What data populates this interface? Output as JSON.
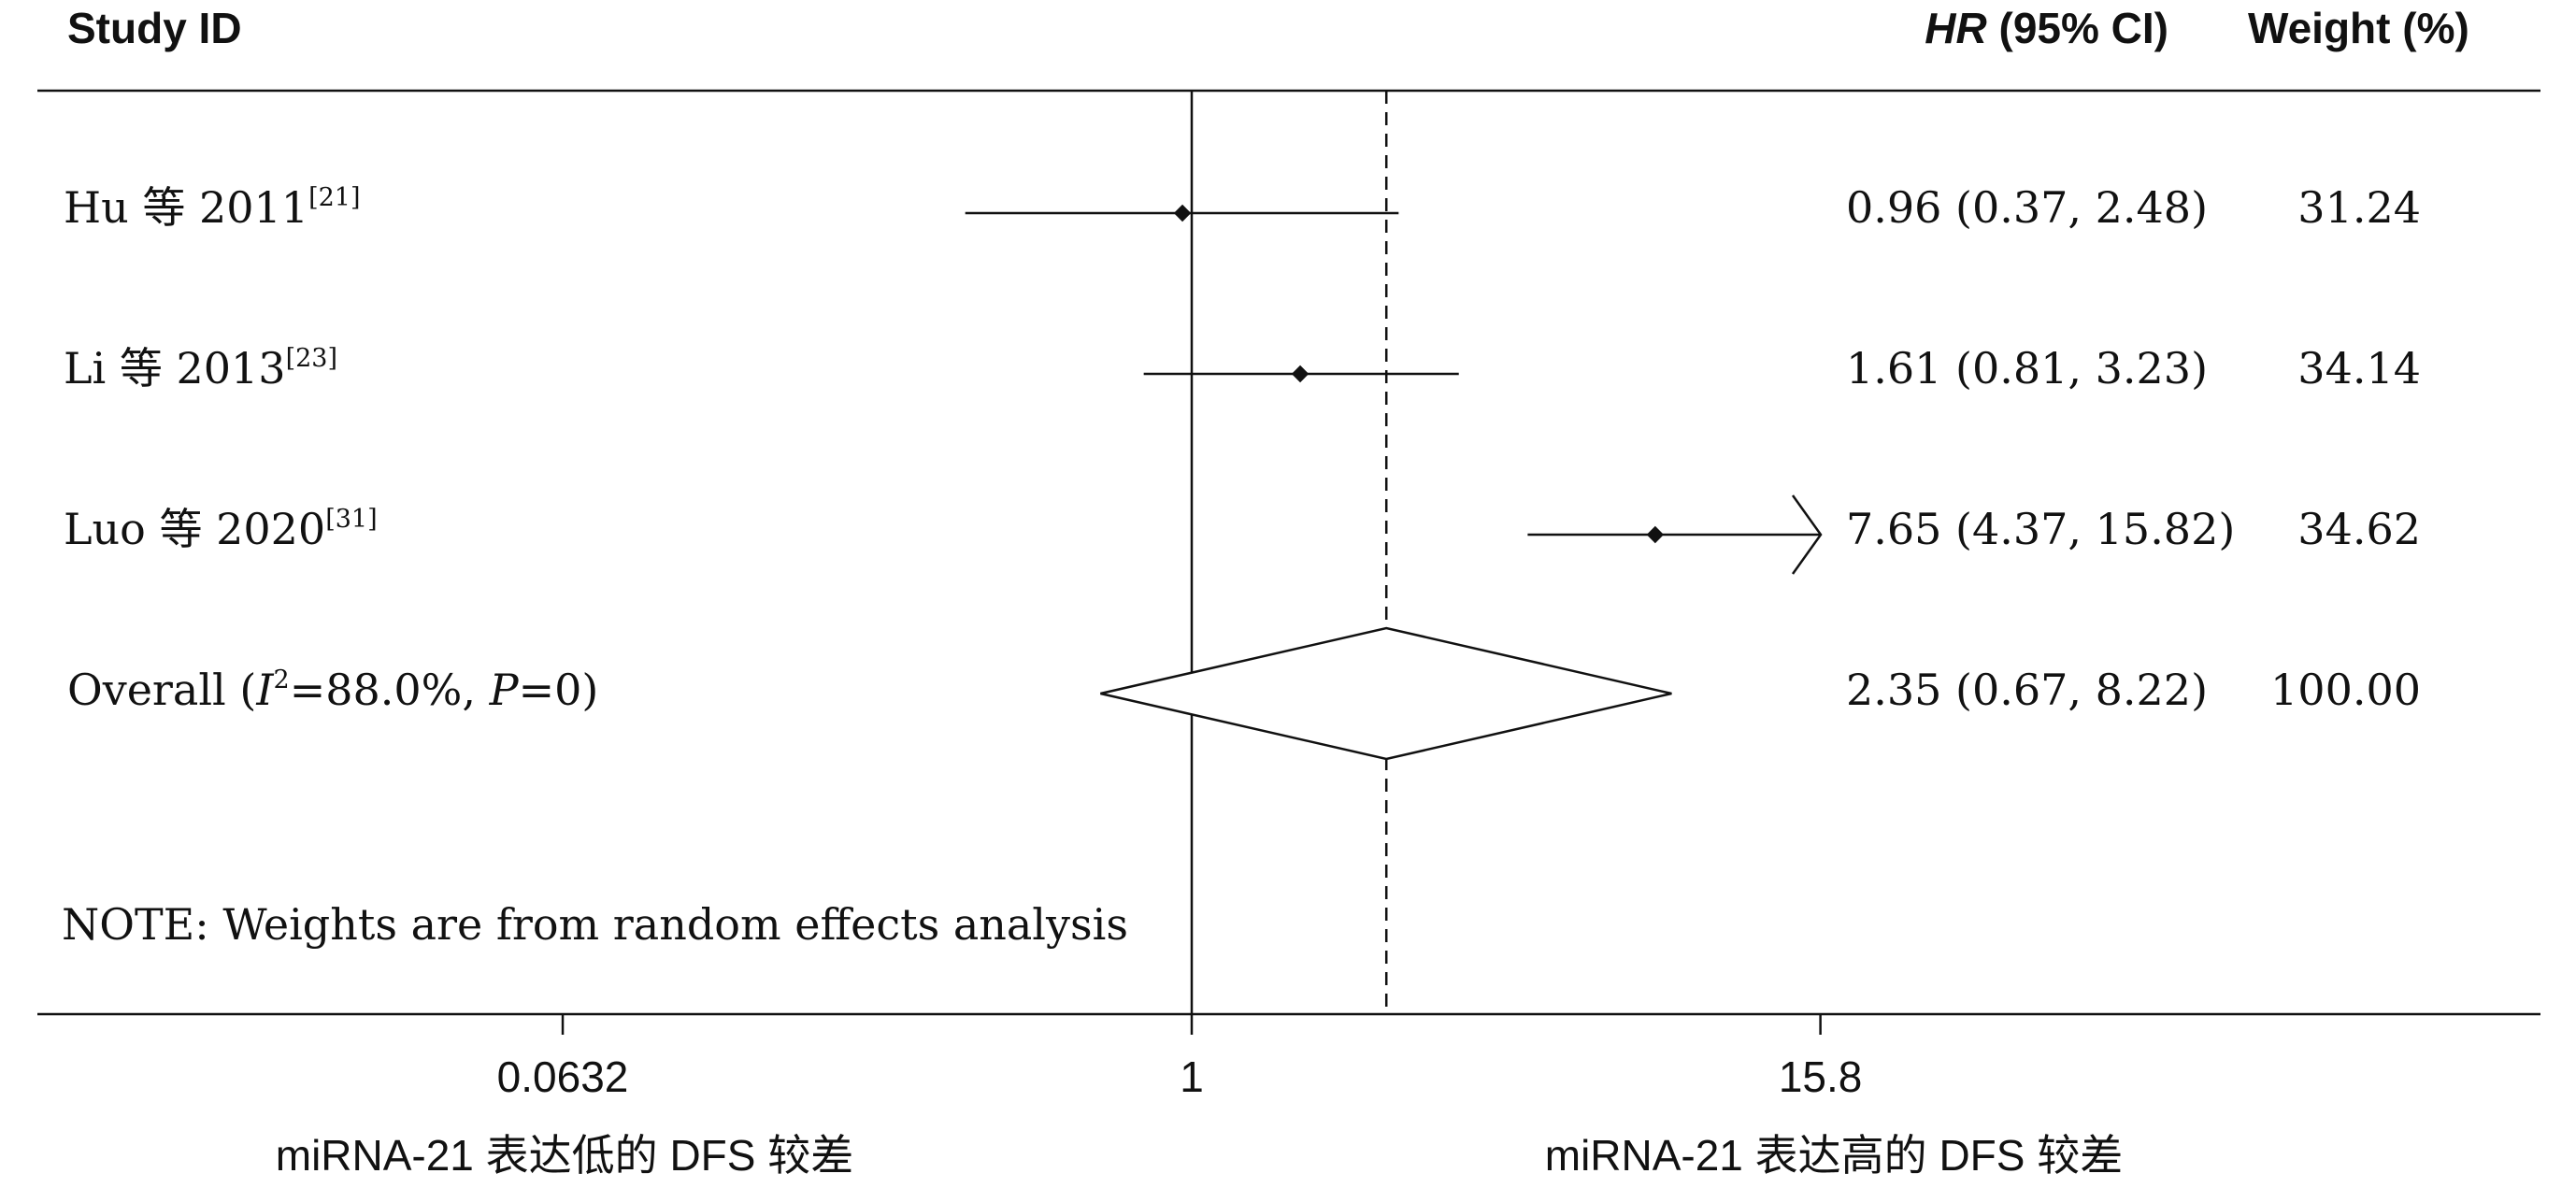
{
  "headers": {
    "study": "Study ID",
    "hr_label": "HR",
    "ci_label": " (95% CI)",
    "weight": "Weight (%)"
  },
  "note": "NOTE: Weights are from random effects analysis",
  "x_labels": {
    "left": "miRNA-21 表达低的 DFS 较差",
    "right": "miRNA-21 表达高的 DFS 较差"
  },
  "chart_data": {
    "type": "forest",
    "x_scale": "log",
    "x_ticks": [
      "0.0632",
      "1",
      "15.8"
    ],
    "x_tick_values": [
      0.0632,
      1,
      15.8
    ],
    "reference_value": 1,
    "pooled_value": 2.35,
    "studies": [
      {
        "label": "Hu 等 2011",
        "ref": "[21]",
        "hr": 0.96,
        "lo": 0.37,
        "hi": 2.48,
        "ci_text": "0.96 (0.37, 2.48)",
        "weight": "31.24",
        "arrow_right": false
      },
      {
        "label": "Li 等 2013",
        "ref": "[23]",
        "hr": 1.61,
        "lo": 0.81,
        "hi": 3.23,
        "ci_text": "1.61 (0.81, 3.23)",
        "weight": "34.14",
        "arrow_right": false
      },
      {
        "label": "Luo 等 2020",
        "ref": "[31]",
        "hr": 7.65,
        "lo": 4.37,
        "hi": 15.82,
        "ci_text": "7.65 (4.37, 15.82)",
        "weight": "34.62",
        "arrow_right": true
      }
    ],
    "overall": {
      "label_prefix": "Overall (",
      "i2_symbol": "I",
      "i2_exp": "2",
      "i2_value": "=88.0%, ",
      "p_symbol": "P",
      "p_value": "=0)",
      "hr": 2.35,
      "lo": 0.67,
      "hi": 8.22,
      "ci_text": "2.35 (0.67, 8.22)",
      "weight": "100.00"
    }
  }
}
